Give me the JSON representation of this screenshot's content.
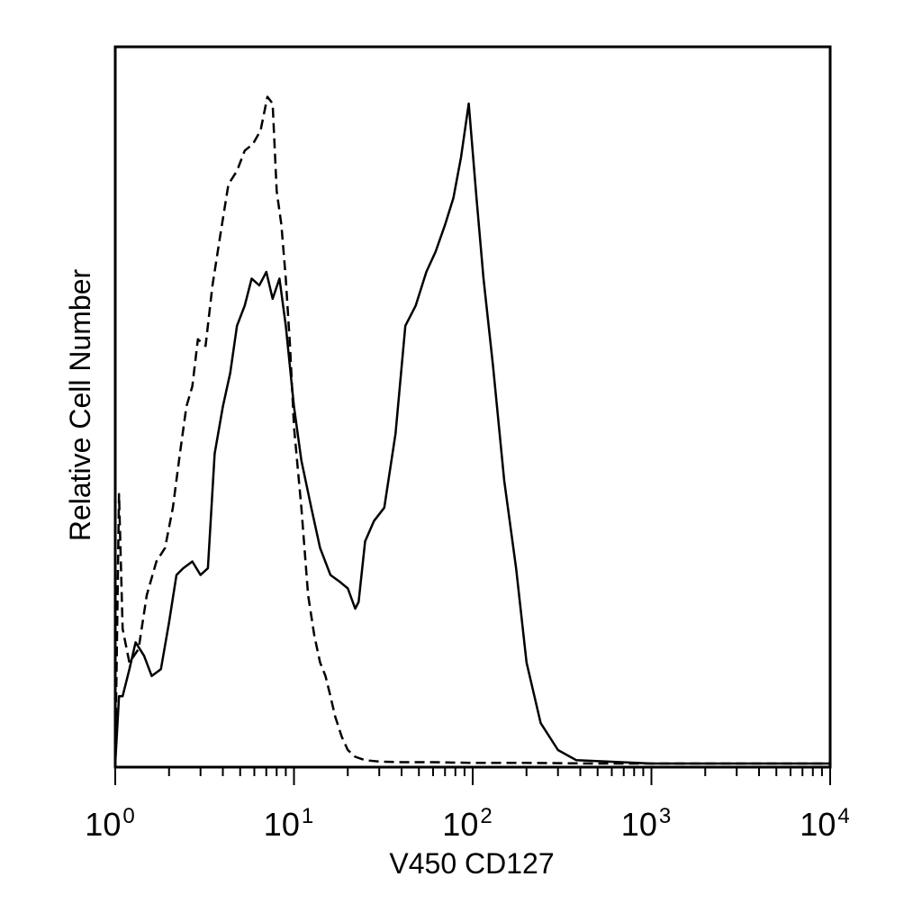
{
  "chart_data": {
    "type": "line",
    "title": "",
    "xlabel": "V450 CD127",
    "ylabel": "Relative Cell Number",
    "x_scale": "log",
    "xlim": [
      1,
      10000
    ],
    "ylim": [
      0,
      100
    ],
    "y_tick_labels_shown": false,
    "grid": false,
    "legend": "none",
    "x_ticks": [
      {
        "base": "10",
        "exp": "0",
        "value": 1
      },
      {
        "base": "10",
        "exp": "1",
        "value": 10
      },
      {
        "base": "10",
        "exp": "2",
        "value": 100
      },
      {
        "base": "10",
        "exp": "3",
        "value": 1000
      },
      {
        "base": "10",
        "exp": "4",
        "value": 10000
      }
    ],
    "series": [
      {
        "style": "dashed",
        "color": "#000000",
        "x": [
          1.0,
          1.05,
          1.1,
          1.2,
          1.35,
          1.5,
          1.7,
          1.9,
          2.1,
          2.3,
          2.5,
          2.7,
          2.9,
          3.2,
          3.5,
          3.9,
          4.3,
          4.8,
          5.3,
          5.9,
          6.5,
          7.1,
          7.6,
          8.0,
          8.5,
          9.0,
          9.5,
          10.0,
          11.0,
          12.0,
          13.0,
          14.0,
          15.0,
          16.0,
          17.0,
          18.5,
          20.0,
          22.0,
          25.0,
          30.0,
          40.0,
          60.0,
          100.0,
          200.0,
          500.0,
          1000.0,
          10000.0
        ],
        "y": [
          0,
          40,
          20,
          15,
          17,
          25,
          30,
          32,
          38,
          46,
          53,
          56,
          63,
          62,
          71,
          79,
          86,
          88,
          91,
          92,
          94,
          99,
          98,
          85,
          80,
          72,
          62,
          50,
          38,
          25,
          19,
          15,
          13,
          10,
          7,
          4,
          2,
          1,
          0.5,
          0.3,
          0.2,
          0.2,
          0.1,
          0.1,
          0,
          0,
          0
        ]
      },
      {
        "style": "solid",
        "color": "#000000",
        "x": [
          1.0,
          1.05,
          1.1,
          1.2,
          1.3,
          1.45,
          1.6,
          1.8,
          2.0,
          2.2,
          2.4,
          2.7,
          3.0,
          3.3,
          3.6,
          4.0,
          4.4,
          4.8,
          5.3,
          5.8,
          6.4,
          7.0,
          7.6,
          8.3,
          9.0,
          10.0,
          11.0,
          12.5,
          14.0,
          16.0,
          18.0,
          20.0,
          22.0,
          23.0,
          25.0,
          28.0,
          32.0,
          37.0,
          42.0,
          48.0,
          55.0,
          62.0,
          70.0,
          78.0,
          86.0,
          95.0,
          105.0,
          115.0,
          130.0,
          150.0,
          175.0,
          200.0,
          240.0,
          300.0,
          380.0,
          1000.0,
          10000.0
        ],
        "y": [
          0,
          10,
          10,
          14,
          18,
          16,
          13,
          14,
          21,
          28,
          29,
          30,
          28,
          29,
          46,
          53,
          58,
          65,
          68,
          72,
          71,
          73,
          69,
          72,
          65,
          53,
          45,
          38,
          32,
          28,
          27,
          26,
          23,
          24,
          33,
          36,
          38,
          49,
          65,
          68,
          73,
          76,
          80,
          84,
          90,
          98,
          84,
          72,
          59,
          42,
          29,
          15,
          6,
          2,
          0.5,
          0,
          0
        ]
      }
    ]
  }
}
